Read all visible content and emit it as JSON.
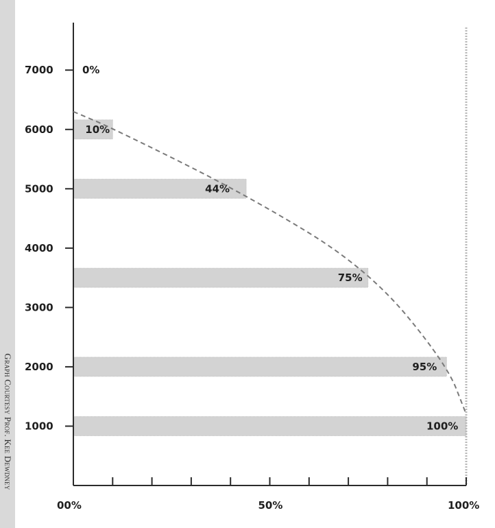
{
  "credit": {
    "text": "Graph Courtesy Prof. Kee Dewdney"
  },
  "chart_data": {
    "type": "bar",
    "orientation": "horizontal",
    "x": [
      10,
      44,
      75,
      95,
      100
    ],
    "y": [
      6000,
      5000,
      3500,
      2000,
      1000
    ],
    "data_labels": [
      "10%",
      "44%",
      "75%",
      "95%",
      "100%"
    ],
    "extra_labels": [
      {
        "x": 0,
        "y": 7000,
        "text": "0%"
      }
    ],
    "x_ticks": [
      0,
      10,
      20,
      30,
      40,
      50,
      60,
      70,
      80,
      90,
      100
    ],
    "x_tick_labels": [
      {
        "x": 0,
        "label": "00%"
      },
      {
        "x": 50,
        "label": "50%"
      },
      {
        "x": 100,
        "label": "100%"
      }
    ],
    "y_ticks": [
      1000,
      2000,
      3000,
      4000,
      5000,
      6000,
      7000
    ],
    "y_tick_labels": [
      "1000",
      "2000",
      "3000",
      "4000",
      "5000",
      "6000",
      "7000"
    ],
    "xlim": [
      0,
      100
    ],
    "ylim": [
      0,
      7800
    ],
    "reference_line_x": 100,
    "curve": {
      "style": "dashed",
      "points": [
        [
          0,
          6300
        ],
        [
          10,
          6020
        ],
        [
          44,
          4900
        ],
        [
          75,
          3650
        ],
        [
          95,
          2050
        ],
        [
          100,
          1200
        ]
      ]
    },
    "grid": false,
    "colors": {
      "bar": "#d3d3d3",
      "axis": "#2a2a2a",
      "curve": "#7a7a7a",
      "reference_line": "#b8b8b8"
    }
  }
}
